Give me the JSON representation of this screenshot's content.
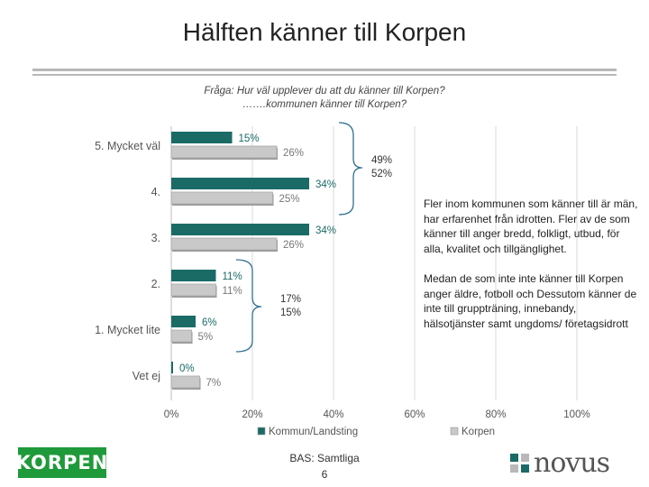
{
  "page": {
    "title": "Hälften känner till Korpen",
    "question_line1": "Fråga: Hur väl upplever du att du känner till Korpen?",
    "question_line2": "…….kommunen känner till Korpen?",
    "bracket_top": {
      "line1": "49%",
      "line2": "52%"
    },
    "bracket_bottom": {
      "line1": "17%",
      "line2": "15%"
    },
    "note1": "Fler inom kommunen som känner till är män, har erfarenhet från idrotten. Fler av de som känner till anger bredd, folkligt, utbud, för alla, kvalitet och tillgänglighet.",
    "note2": "Medan de som inte inte känner till Korpen anger äldre,  fotboll och Dessutom känner de inte till gruppträning, innebandy, hälsotjänster samt ungdoms/ företagsidrott",
    "footer_bas": "BAS: Samtliga",
    "page_number": "6",
    "logo_left": "KORPEN",
    "logo_right": "novus"
  },
  "colors": {
    "series1": "#1a6b66",
    "series2": "#c9c9c9",
    "bracket": "#2f6f8f",
    "label_series1": "#1a6b66",
    "label_series2": "#777777"
  },
  "chart_data": {
    "type": "bar",
    "orientation": "horizontal",
    "categories": [
      "5. Mycket väl",
      "4.",
      "3.",
      "2.",
      "1. Mycket lite",
      "Vet ej"
    ],
    "series": [
      {
        "name": "Kommun/Landsting",
        "values": [
          15,
          34,
          34,
          11,
          6,
          0
        ]
      },
      {
        "name": "Korpen",
        "values": [
          26,
          25,
          26,
          11,
          5,
          7
        ]
      }
    ],
    "xlim": [
      0,
      100
    ],
    "xticks": [
      0,
      20,
      40,
      60,
      80,
      100
    ],
    "tick_labels": [
      "0%",
      "20%",
      "40%",
      "60%",
      "80%",
      "100%"
    ],
    "value_labels": [
      [
        "15%",
        "34%",
        "34%",
        "11%",
        "6%",
        "0%"
      ],
      [
        "26%",
        "25%",
        "26%",
        "11%",
        "5%",
        "7%"
      ]
    ],
    "grid": true,
    "legend": "bottom"
  }
}
